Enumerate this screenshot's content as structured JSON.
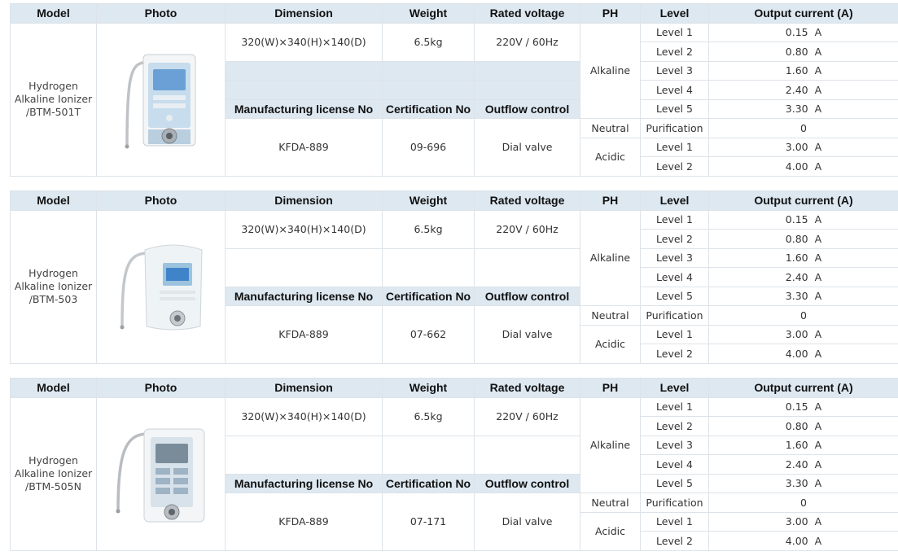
{
  "headers": {
    "model": "Model",
    "photo": "Photo",
    "dimension": "Dimension",
    "weight": "Weight",
    "rated_voltage": "Rated voltage",
    "ph": "PH",
    "level": "Level",
    "output_current": "Output current (A)",
    "license": "Manufacturing license No",
    "certification": "Certification No",
    "outflow": "Outflow  control"
  },
  "ph_labels": {
    "alkaline": "Alkaline",
    "neutral": "Neutral",
    "acidic": "Acidic",
    "purification": "Purification"
  },
  "level_rows": [
    {
      "level": "Level 1",
      "value": "0.15",
      "unit": "A"
    },
    {
      "level": "Level 2",
      "value": "0.80",
      "unit": "A"
    },
    {
      "level": "Level 3",
      "value": "1.60",
      "unit": "A"
    },
    {
      "level": "Level 4",
      "value": "2.40",
      "unit": "A"
    },
    {
      "level": "Level 5",
      "value": "3.30",
      "unit": "A"
    }
  ],
  "neutral_value": "0",
  "acidic_rows": [
    {
      "level": "Level 1",
      "value": "3.00",
      "unit": "A"
    },
    {
      "level": "Level 2",
      "value": "4.00",
      "unit": "A"
    }
  ],
  "products": [
    {
      "model_line1": "Hydrogen",
      "model_line2": "Alkaline Ionizer",
      "model_line3": "/BTM-501T",
      "photo_icon": "water-ionizer-501t",
      "dimension": "320(W)×340(H)×140(D)",
      "weight": "6.5kg",
      "rated_voltage": "220V / 60Hz",
      "license": "KFDA-889",
      "certification": "09-696",
      "outflow": "Dial valve"
    },
    {
      "model_line1": "Hydrogen",
      "model_line2": "Alkaline Ionizer",
      "model_line3": "/BTM-503",
      "photo_icon": "water-ionizer-503",
      "dimension": "320(W)×340(H)×140(D)",
      "weight": "6.5kg",
      "rated_voltage": "220V / 60Hz",
      "license": "KFDA-889",
      "certification": "07-662",
      "outflow": "Dial valve"
    },
    {
      "model_line1": "Hydrogen",
      "model_line2": "Alkaline Ionizer",
      "model_line3": "/BTM-505N",
      "photo_icon": "water-ionizer-505n",
      "dimension": "320(W)×340(H)×140(D)",
      "weight": "6.5kg",
      "rated_voltage": "220V / 60Hz",
      "license": "KFDA-889",
      "certification": "07-171",
      "outflow": "Dial valve"
    }
  ],
  "colors": {
    "header_bg": "#dde8f1",
    "border": "#dde3e8",
    "text": "#333333"
  }
}
